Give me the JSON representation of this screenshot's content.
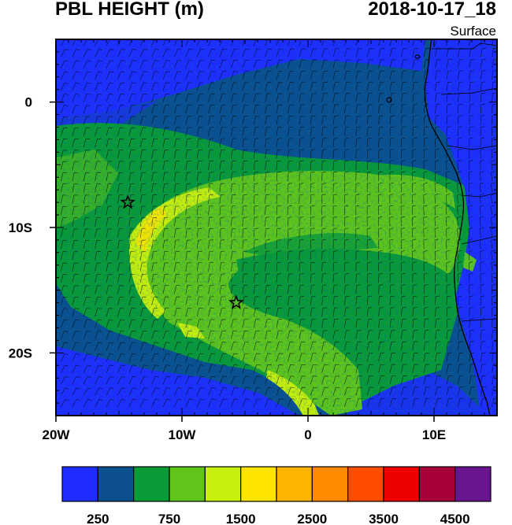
{
  "title": {
    "left": "PBL HEIGHT (m)",
    "right": "2018-10-17_18"
  },
  "level_label": "Surface",
  "map": {
    "lon_range": [
      -20,
      15
    ],
    "lat_range": [
      -25,
      5
    ],
    "x_ticks": [
      {
        "value": -20,
        "label": "20W"
      },
      {
        "value": -10,
        "label": "10W"
      },
      {
        "value": 0,
        "label": "0"
      },
      {
        "value": 10,
        "label": "10E"
      }
    ],
    "y_ticks": [
      {
        "value": 0,
        "label": "0"
      },
      {
        "value": -10,
        "label": "10S"
      },
      {
        "value": -20,
        "label": "20S"
      }
    ],
    "markers": [
      {
        "type": "star",
        "lon": -14.3,
        "lat": -8.0
      },
      {
        "type": "star",
        "lon": -5.7,
        "lat": -16.0
      }
    ],
    "wind_barbs": true
  },
  "colorbar": {
    "colors": [
      "#1f2cff",
      "#0b4f8e",
      "#0a9a36",
      "#5fc51a",
      "#c6ef0b",
      "#ffe400",
      "#ffb400",
      "#ff8a00",
      "#ff4d00",
      "#ee0000",
      "#a8003a",
      "#6a1590"
    ],
    "labels": [
      "250",
      "750",
      "1500",
      "2500",
      "3500",
      "4500"
    ]
  }
}
